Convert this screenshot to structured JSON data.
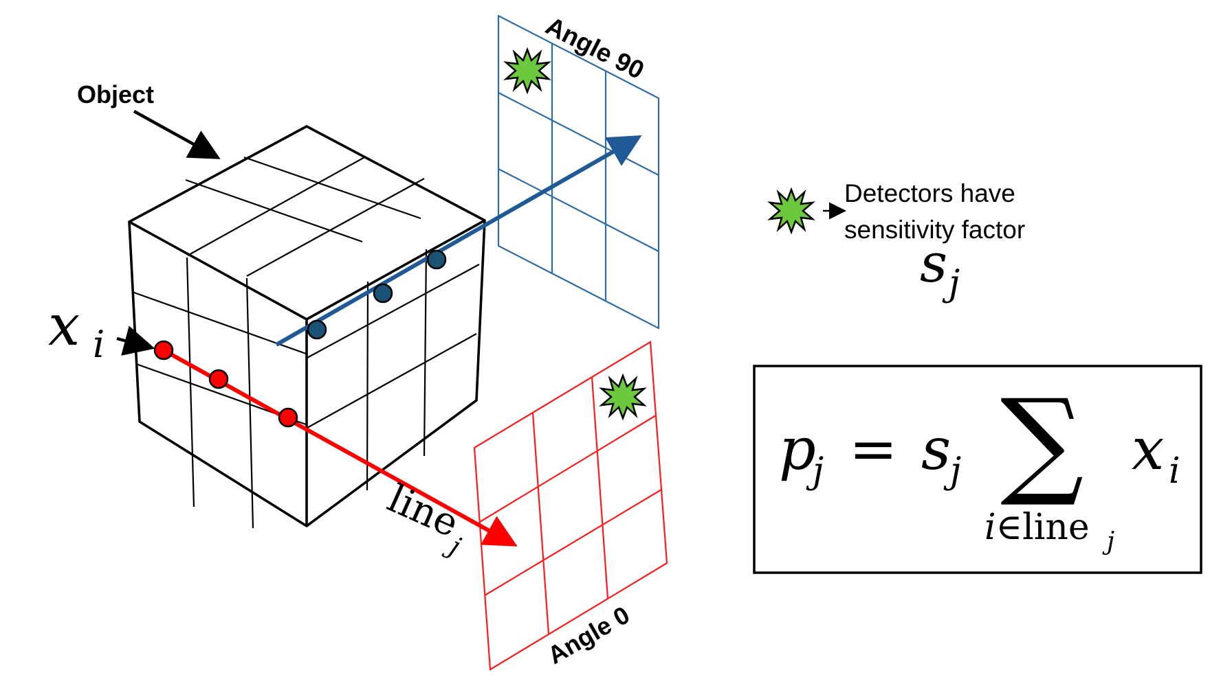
{
  "labels": {
    "object": "Object",
    "angle_90": "Angle 90",
    "angle_0": "Angle 0",
    "xi_base": "x",
    "xi_sub": "i",
    "line_base": "line",
    "line_sub": "j",
    "legend_line1": "Detectors have",
    "legend_line2": "sensitivity factor",
    "sj_base": "s",
    "sj_sub": "j"
  },
  "formula": {
    "p": "p",
    "p_sub": "j",
    "equals": "=",
    "s": "s",
    "s_sub": "j",
    "sum": "∑",
    "x": "x",
    "x_sub": "i",
    "limit_i": "i",
    "limit_in": "∈",
    "limit_line": "line",
    "limit_sub": "j"
  },
  "colors": {
    "cube": "#000000",
    "blue_ray": "#1f5a96",
    "blue_detector": "#2e6aa6",
    "blue_dot": "#1a5276",
    "red_ray": "#ff0000",
    "red_detector": "#ff1a1a",
    "red_dot": "#ff0000",
    "star_fill": "#6cc83c"
  },
  "icons": {
    "detector_marker": "green-starburst-icon"
  }
}
